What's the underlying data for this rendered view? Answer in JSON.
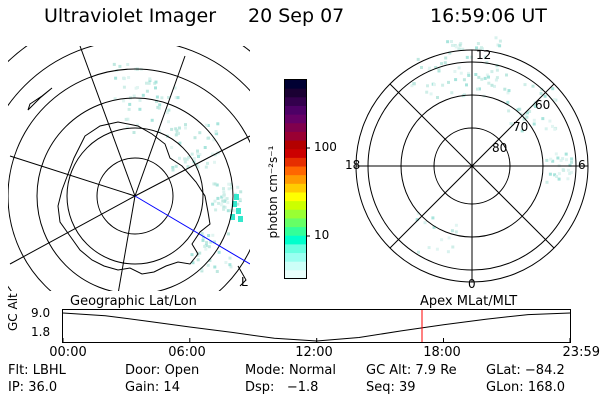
{
  "header": {
    "instrument": "Ultraviolet Imager",
    "date": "20 Sep 07",
    "time": "16:59:06 UT"
  },
  "left_panel": {
    "caption": "Geographic Lat/Lon",
    "lower_right_mark": "L"
  },
  "colorbar": {
    "unit_label": "photon cm⁻²s⁻¹",
    "tick_labels": [
      "100",
      "10"
    ],
    "tick_values": [
      100,
      10
    ],
    "scale": "log",
    "colors": [
      "#000033",
      "#1a0033",
      "#33004d",
      "#4d0066",
      "#660066",
      "#80004d",
      "#990033",
      "#b30000",
      "#cc0000",
      "#e62e00",
      "#ff6600",
      "#ff9900",
      "#ffcc00",
      "#ffff00",
      "#ccff00",
      "#99ff33",
      "#66ff66",
      "#33ff99",
      "#00ffcc",
      "#66ffe0",
      "#99fff0",
      "#ccfff8",
      "#e8fffc"
    ]
  },
  "right_panel": {
    "caption": "Apex MLat/MLT",
    "mlt_labels": {
      "top": "12",
      "left": "18",
      "right": "6",
      "bottom": "0"
    },
    "mlat_labels": [
      "60",
      "70",
      "80"
    ]
  },
  "timeline": {
    "y_label": "GC Alt",
    "y_ticks": [
      "9.0",
      "1.8"
    ],
    "x_ticks": [
      "00:00",
      "06:00",
      "12:00",
      "18:00",
      "23:59"
    ],
    "marker_time": "16:59",
    "marker_color": "#ff0000"
  },
  "chart_data": {
    "type": "line",
    "title": "",
    "xlabel": "",
    "ylabel": "GC Alt",
    "x": [
      "00:00",
      "02:00",
      "04:00",
      "06:00",
      "08:00",
      "10:00",
      "12:00",
      "14:00",
      "16:00",
      "18:00",
      "20:00",
      "22:00",
      "23:59"
    ],
    "series": [
      {
        "values": [
          9.0,
          8.3,
          6.9,
          5.4,
          4.0,
          2.5,
          1.8,
          2.7,
          4.4,
          6.0,
          7.4,
          8.6,
          9.0
        ]
      }
    ],
    "ylim": [
      1.8,
      9.0
    ],
    "grid": false
  },
  "status": {
    "row1": [
      {
        "key": "Flt:",
        "value": "LBHL"
      },
      {
        "key": "Door:",
        "value": "Open"
      },
      {
        "key": "Mode:",
        "value": "Normal"
      },
      {
        "key": "GC Alt:",
        "value": "7.9 Re"
      },
      {
        "key": "GLat:",
        "value": "−84.2"
      }
    ],
    "row2": [
      {
        "key": "IP:",
        "value": "36.0"
      },
      {
        "key": "Gain:",
        "value": "14"
      },
      {
        "key": "Dsp:",
        "value": "  −1.8"
      },
      {
        "key": "Seq:",
        "value": "39"
      },
      {
        "key": "GLon:",
        "value": "168.0"
      }
    ]
  }
}
